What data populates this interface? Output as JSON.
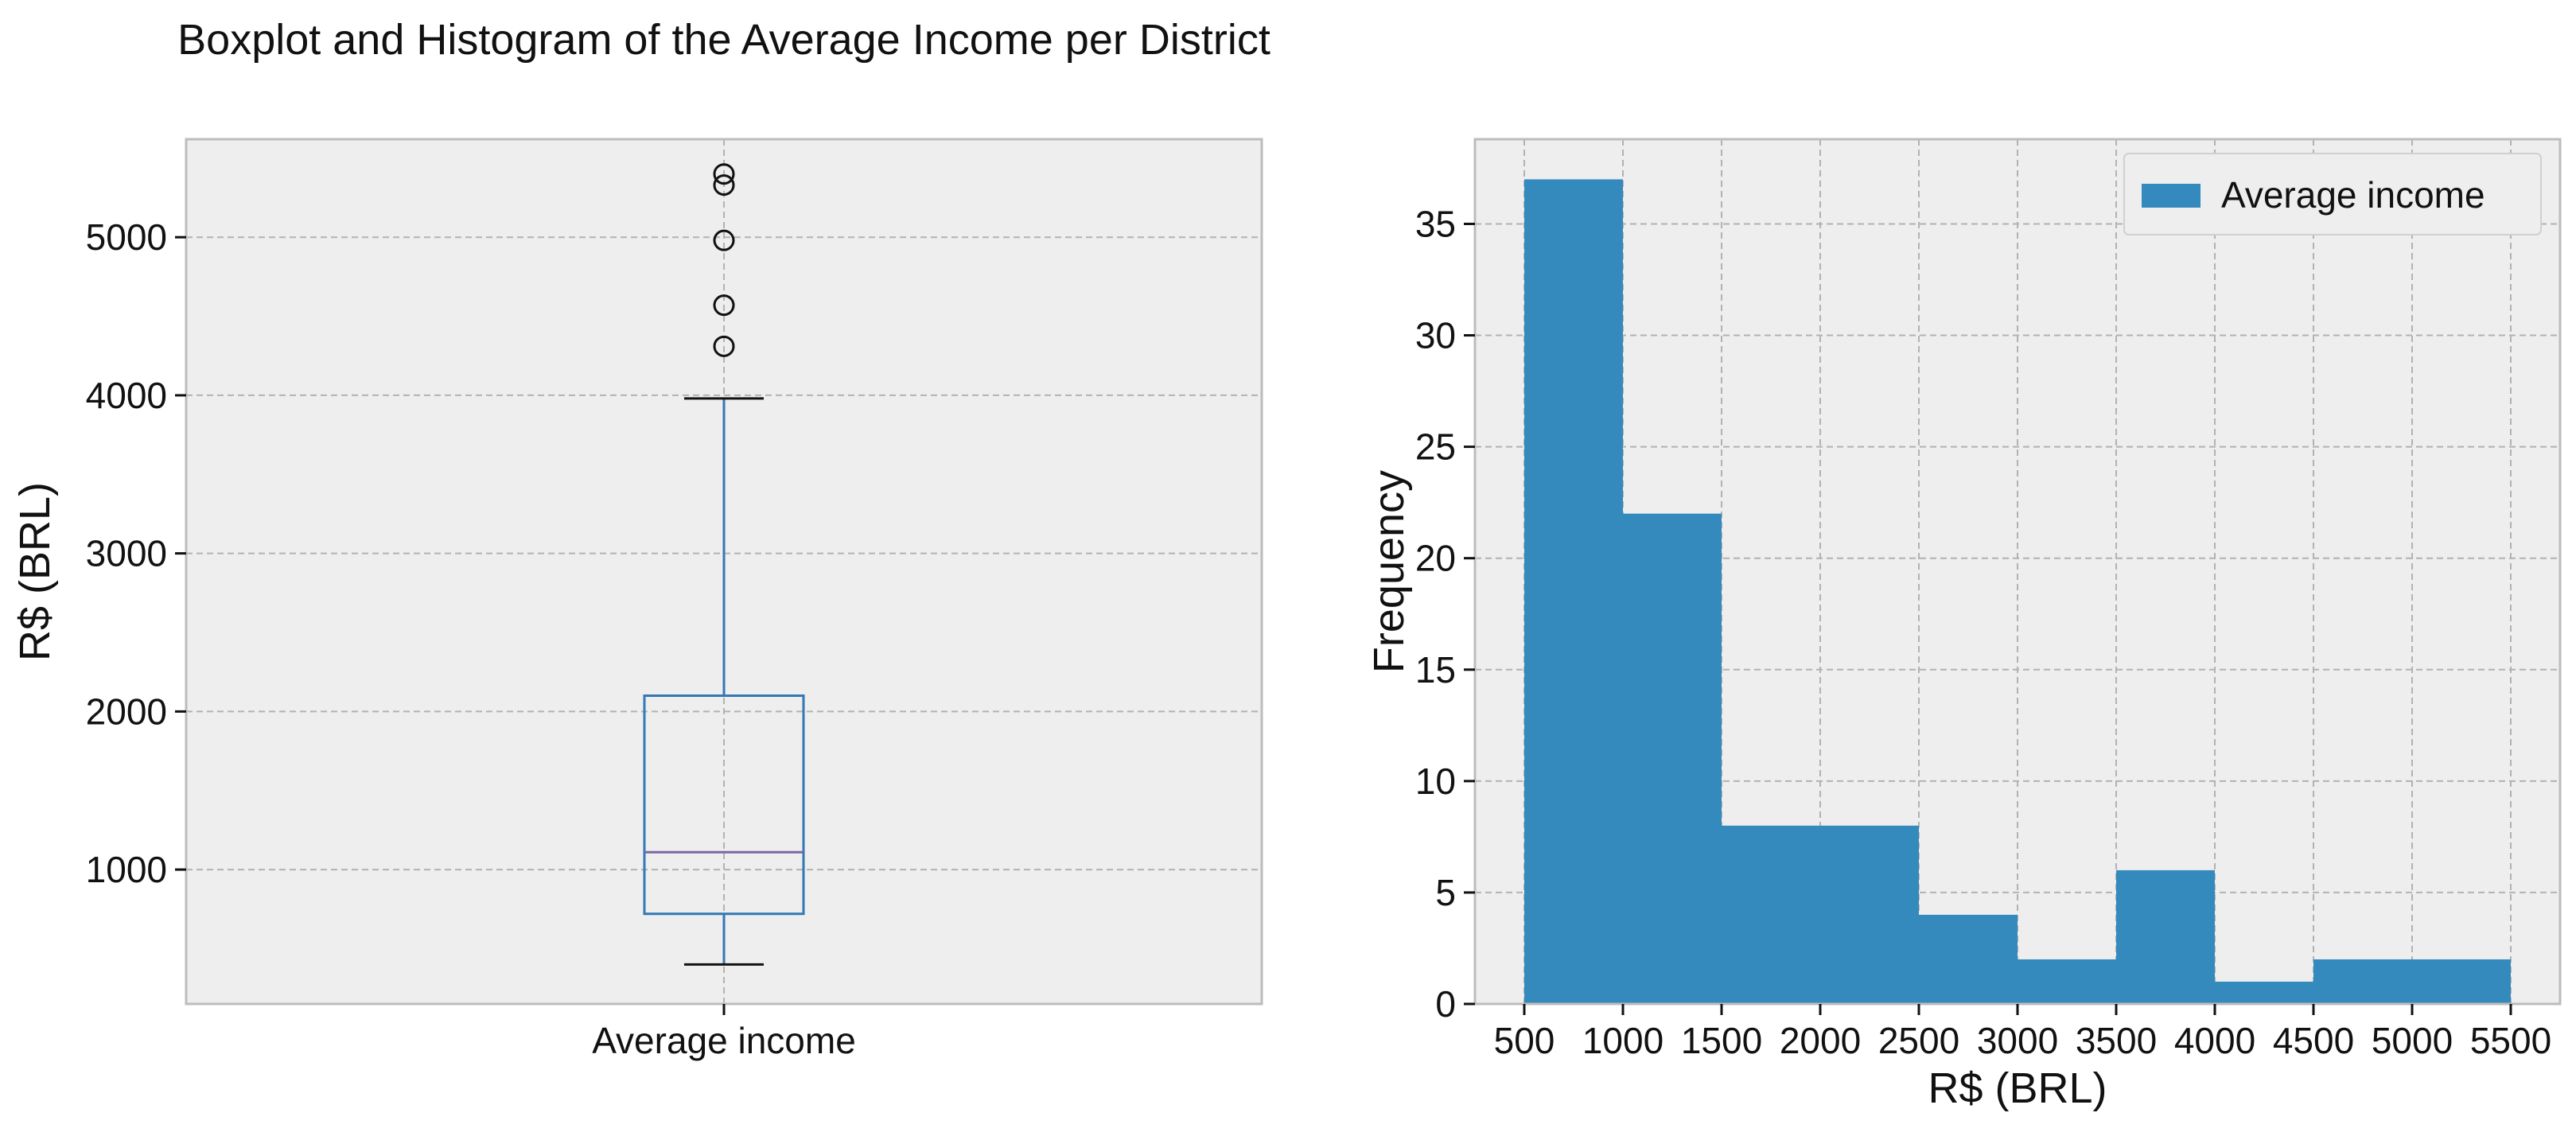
{
  "figure": {
    "title": "Boxplot and Histogram of the Average Income per District"
  },
  "colors": {
    "background": "#eeeeee",
    "box": "#3478b4",
    "median": "#7a68a6",
    "whisker_cap": "#111111",
    "hist": "#348abd"
  },
  "chart_data": [
    {
      "type": "boxplot",
      "title": "",
      "xlabel": "",
      "ylabel": "R$ (BRL)",
      "ylim": [
        150,
        5620
      ],
      "yticks": [
        1000,
        2000,
        3000,
        4000,
        5000
      ],
      "grid": true,
      "categories": [
        "Average income"
      ],
      "boxes": [
        {
          "label": "Average income",
          "whisker_low": 400,
          "q1": 720,
          "median": 1110,
          "q3": 2100,
          "whisker_high": 3980,
          "outliers": [
            4310,
            4570,
            4980,
            5330,
            5400
          ]
        }
      ]
    },
    {
      "type": "bar",
      "subtype": "histogram",
      "title": "",
      "xlabel": "R$ (BRL)",
      "ylabel": "Frequency",
      "xlim": [
        250,
        5750
      ],
      "ylim": [
        0,
        38.8
      ],
      "xticks": [
        500,
        1000,
        1500,
        2000,
        2500,
        3000,
        3500,
        4000,
        4500,
        5000,
        5500
      ],
      "yticks": [
        0,
        5,
        10,
        15,
        20,
        25,
        30,
        35
      ],
      "grid": true,
      "legend": {
        "position": "top-right",
        "entries": [
          "Average income"
        ]
      },
      "bin_edges": [
        500,
        1000,
        1500,
        2000,
        2500,
        3000,
        3500,
        4000,
        4500,
        5000,
        5500
      ],
      "series": [
        {
          "name": "Average income",
          "values": [
            37,
            22,
            8,
            8,
            4,
            2,
            6,
            1,
            2,
            2
          ]
        }
      ]
    }
  ]
}
